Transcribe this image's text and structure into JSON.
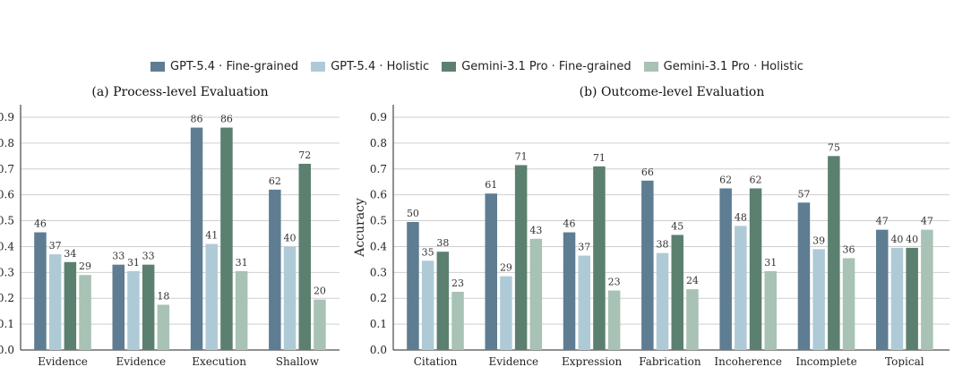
{
  "legend": {
    "items": [
      {
        "label": "GPT-5.4 · Fine-grained",
        "color": "#5e7d92"
      },
      {
        "label": "GPT-5.4 · Holistic",
        "color": "#aecad6"
      },
      {
        "label": "Gemini-3.1 Pro · Fine-grained",
        "color": "#5c8070"
      },
      {
        "label": "Gemini-3.1 Pro · Holistic",
        "color": "#a8c2b5"
      }
    ]
  },
  "chart_data": [
    {
      "type": "bar",
      "title": "(a) Process-level Evaluation",
      "xlabel": "",
      "ylabel": "",
      "ylim": [
        0,
        0.95
      ],
      "yticks": [
        "0.0",
        "0.1",
        "0.2",
        "0.3",
        "0.4",
        "0.5",
        "0.6",
        "0.7",
        "0.8",
        "0.9"
      ],
      "grid": true,
      "categories": [
        "Evidence",
        "Evidence",
        "Execution",
        "Shallow"
      ],
      "series": [
        {
          "name": "GPT-5.4 · Fine-grained",
          "values": [
            0.455,
            0.33,
            0.86,
            0.62
          ],
          "labels": [
            "46",
            "33",
            "86",
            "62"
          ]
        },
        {
          "name": "GPT-5.4 · Holistic",
          "values": [
            0.37,
            0.305,
            0.41,
            0.4
          ],
          "labels": [
            "37",
            "31",
            "41",
            "40"
          ]
        },
        {
          "name": "Gemini-3.1 Pro · Fine-grained",
          "values": [
            0.34,
            0.33,
            0.86,
            0.72
          ],
          "labels": [
            "34",
            "33",
            "86",
            "72"
          ]
        },
        {
          "name": "Gemini-3.1 Pro · Holistic",
          "values": [
            0.29,
            0.175,
            0.305,
            0.195
          ],
          "labels": [
            "29",
            "18",
            "31",
            "20"
          ]
        }
      ]
    },
    {
      "type": "bar",
      "title": "(b) Outcome-level Evaluation",
      "xlabel": "",
      "ylabel": "Accuracy",
      "ylim": [
        0,
        0.95
      ],
      "yticks": [
        "0.0",
        "0.1",
        "0.2",
        "0.3",
        "0.4",
        "0.5",
        "0.6",
        "0.7",
        "0.8",
        "0.9"
      ],
      "grid": true,
      "categories": [
        "Citation",
        "Evidence",
        "Expression",
        "Fabrication",
        "Incoherence",
        "Incomplete",
        "Topical"
      ],
      "series": [
        {
          "name": "GPT-5.4 · Fine-grained",
          "values": [
            0.495,
            0.605,
            0.455,
            0.655,
            0.625,
            0.57,
            0.465
          ],
          "labels": [
            "50",
            "61",
            "46",
            "66",
            "62",
            "57",
            "47"
          ]
        },
        {
          "name": "GPT-5.4 · Holistic",
          "values": [
            0.345,
            0.285,
            0.365,
            0.375,
            0.48,
            0.39,
            0.395
          ],
          "labels": [
            "35",
            "29",
            "37",
            "38",
            "48",
            "39",
            "40"
          ]
        },
        {
          "name": "Gemini-3.1 Pro · Fine-grained",
          "values": [
            0.38,
            0.715,
            0.71,
            0.445,
            0.625,
            0.75,
            0.395
          ],
          "labels": [
            "38",
            "71",
            "71",
            "45",
            "62",
            "75",
            "40"
          ]
        },
        {
          "name": "Gemini-3.1 Pro · Holistic",
          "values": [
            0.225,
            0.43,
            0.23,
            0.235,
            0.305,
            0.355,
            0.465
          ],
          "labels": [
            "23",
            "43",
            "23",
            "24",
            "31",
            "36",
            "47"
          ]
        }
      ]
    }
  ]
}
